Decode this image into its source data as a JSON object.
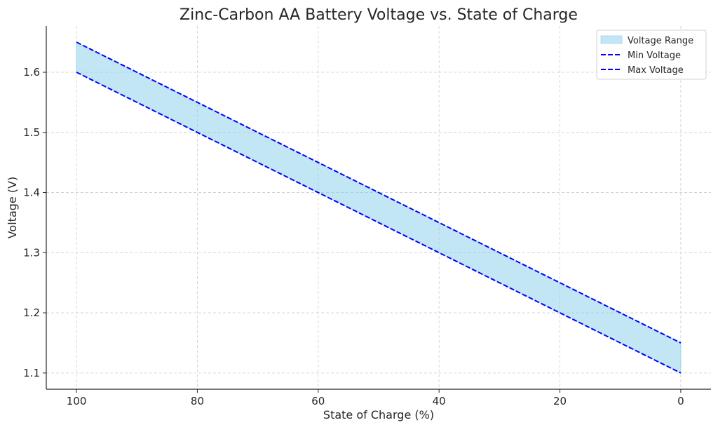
{
  "chart_data": {
    "type": "area",
    "title": "Zinc-Carbon AA Battery Voltage vs. State of Charge",
    "xlabel": "State of Charge (%)",
    "ylabel": "Voltage (V)",
    "x_inverted": true,
    "xlim": [
      105,
      -5
    ],
    "ylim": [
      1.073,
      1.677
    ],
    "x_ticks": [
      "100",
      "80",
      "60",
      "40",
      "20",
      "0"
    ],
    "y_ticks": [
      "1.1",
      "1.2",
      "1.3",
      "1.4",
      "1.5",
      "1.6"
    ],
    "grid": true,
    "legend_position": "top-right",
    "x": [
      100,
      0
    ],
    "series": [
      {
        "name": "Voltage Range",
        "kind": "band",
        "lower": [
          1.6,
          1.1
        ],
        "upper": [
          1.65,
          1.15
        ],
        "color": "#87ceeb"
      },
      {
        "name": "Min Voltage",
        "kind": "dashed-line",
        "values": [
          1.6,
          1.1
        ],
        "color": "#0000ff"
      },
      {
        "name": "Max Voltage",
        "kind": "dashed-line",
        "values": [
          1.65,
          1.15
        ],
        "color": "#0000ff"
      }
    ]
  }
}
